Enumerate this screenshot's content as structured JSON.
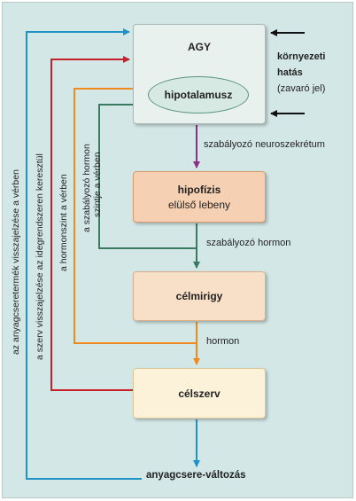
{
  "colors": {
    "background": "#d3e7e6",
    "metabolite_loop": "#1f93c9",
    "nerve_loop": "#c8202a",
    "hormone_loop": "#ef8a1f",
    "regulator_loop": "#3a7a60",
    "neurosecretion": "#8a2f8a"
  },
  "boxes": {
    "brain": "AGY",
    "hypothalamus": "hipotalamusz",
    "pituitary_title": "hipofízis",
    "pituitary_sub": "elülső lebeny",
    "target_gland": "célmirigy",
    "target_organ": "célszerv"
  },
  "environment": {
    "line1": "környezeti",
    "line2": "hatás",
    "line3": "(zavaró jel)"
  },
  "arrow_labels": {
    "neurosecretion": "szabályozó neuroszekrétum",
    "regulating_hormone": "szabályozó hormon",
    "hormone": "hormon",
    "metabolism_change": "anyagcsere-változás"
  },
  "feedback_labels": {
    "metabolite": "az anyagcseretermék visszajelzése a vérben",
    "nerve": "a szerv visszajelzése az idegrendszeren keresztül",
    "hormone_level": "a hormonszint a vérben",
    "regulator_line1": "a szabályozó hormon",
    "regulator_line2": "szintje a vérben"
  }
}
